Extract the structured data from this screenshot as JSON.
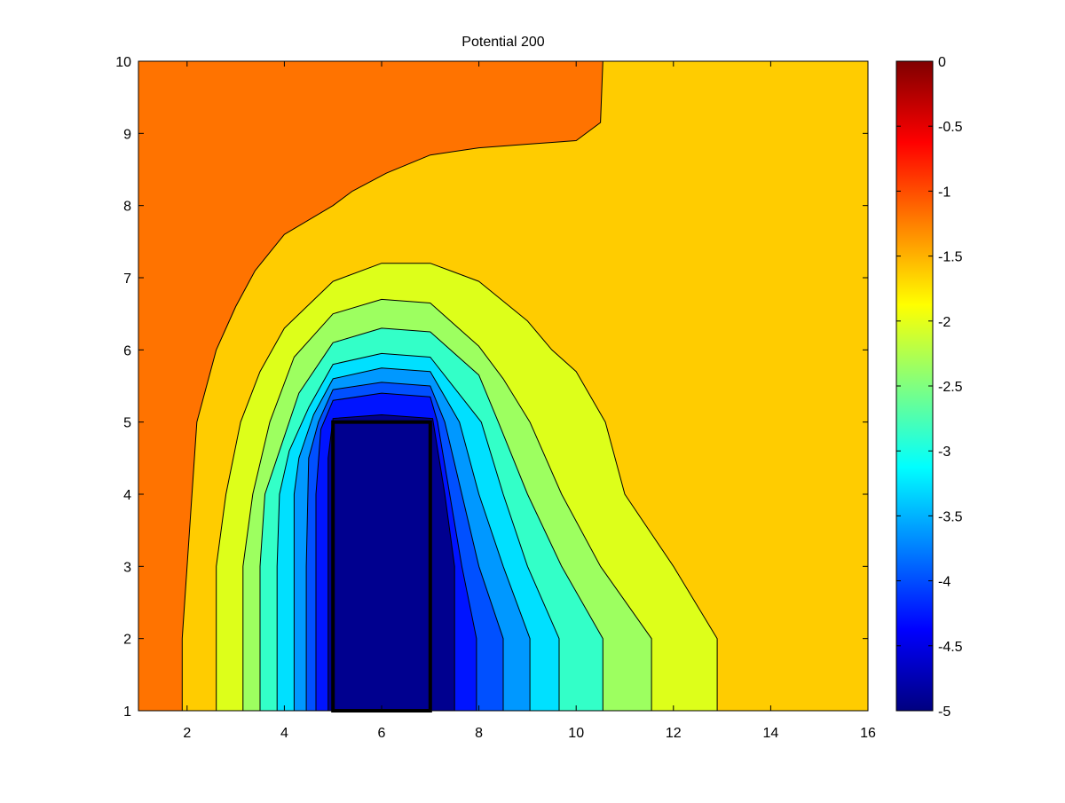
{
  "chart_data": {
    "type": "contour",
    "title": "Potential 200",
    "xlim": [
      1,
      16
    ],
    "ylim": [
      1,
      10
    ],
    "x_ticks": [
      2,
      4,
      6,
      8,
      10,
      12,
      14,
      16
    ],
    "y_ticks": [
      1,
      2,
      3,
      4,
      5,
      6,
      7,
      8,
      9,
      10
    ],
    "colorbar": {
      "limits": [
        -5,
        0
      ],
      "colormap": "jet",
      "ticks": [
        "0",
        "-0.5",
        "-1",
        "-1.5",
        "-2",
        "-2.5",
        "-3",
        "-3.5",
        "-4",
        "-4.5",
        "-5"
      ],
      "tick_values": [
        0,
        -0.5,
        -1,
        -1.5,
        -2,
        -2.5,
        -3,
        -3.5,
        -4,
        -4.5,
        -5
      ]
    },
    "background_level": {
      "value": -1.75,
      "color": "#FFCC00"
    },
    "filled_levels": [
      {
        "value": -1.25,
        "color": "#FF7300",
        "points": [
          [
            1,
            1
          ],
          [
            1.9,
            1
          ],
          [
            1.9,
            2
          ],
          [
            2.2,
            5
          ],
          [
            2.6,
            6
          ],
          [
            3.0,
            6.6
          ],
          [
            3.4,
            7.1
          ],
          [
            4.0,
            7.6
          ],
          [
            5.0,
            8.0
          ],
          [
            5.4,
            8.2
          ],
          [
            6.1,
            8.45
          ],
          [
            7.0,
            8.7
          ],
          [
            8.0,
            8.8
          ],
          [
            9.0,
            8.85
          ],
          [
            10.0,
            8.9
          ],
          [
            10.5,
            9.15
          ],
          [
            10.55,
            10
          ],
          [
            1,
            10
          ]
        ]
      },
      {
        "value": -2.05,
        "color": "#DDFF1A",
        "points": [
          [
            2.6,
            1
          ],
          [
            12.9,
            1
          ],
          [
            12.9,
            2
          ],
          [
            12.0,
            3.0
          ],
          [
            11.0,
            4.0
          ],
          [
            10.6,
            5.0
          ],
          [
            10.0,
            5.7
          ],
          [
            9.5,
            6.0
          ],
          [
            9.0,
            6.4
          ],
          [
            8.0,
            6.95
          ],
          [
            7.0,
            7.2
          ],
          [
            6.0,
            7.2
          ],
          [
            5.0,
            6.95
          ],
          [
            4.0,
            6.3
          ],
          [
            3.5,
            5.7
          ],
          [
            3.1,
            5.0
          ],
          [
            2.8,
            4.0
          ],
          [
            2.6,
            3.0
          ]
        ]
      },
      {
        "value": -2.45,
        "color": "#9DFF60",
        "points": [
          [
            3.15,
            1
          ],
          [
            11.55,
            1
          ],
          [
            11.55,
            2
          ],
          [
            10.5,
            3.0
          ],
          [
            9.7,
            4.0
          ],
          [
            9.05,
            5.0
          ],
          [
            8.5,
            5.6
          ],
          [
            8.0,
            6.05
          ],
          [
            7.0,
            6.65
          ],
          [
            6.0,
            6.7
          ],
          [
            5.0,
            6.5
          ],
          [
            4.2,
            5.9
          ],
          [
            3.7,
            5.0
          ],
          [
            3.35,
            4.0
          ],
          [
            3.15,
            3.0
          ]
        ]
      },
      {
        "value": -2.85,
        "color": "#33FFC8",
        "points": [
          [
            3.5,
            1
          ],
          [
            10.55,
            1
          ],
          [
            10.55,
            2
          ],
          [
            9.7,
            3.0
          ],
          [
            9.0,
            4.0
          ],
          [
            8.4,
            5.0
          ],
          [
            8.0,
            5.65
          ],
          [
            7.0,
            6.25
          ],
          [
            6.0,
            6.3
          ],
          [
            5.0,
            6.1
          ],
          [
            4.3,
            5.4
          ],
          [
            3.9,
            4.6
          ],
          [
            3.6,
            4.0
          ],
          [
            3.5,
            3.0
          ]
        ]
      },
      {
        "value": -3.25,
        "color": "#00E0FF",
        "points": [
          [
            3.85,
            1
          ],
          [
            9.65,
            1
          ],
          [
            9.65,
            2
          ],
          [
            9.0,
            3.0
          ],
          [
            8.5,
            4.0
          ],
          [
            8.05,
            5.0
          ],
          [
            7.0,
            5.9
          ],
          [
            6.0,
            5.95
          ],
          [
            5.0,
            5.8
          ],
          [
            4.5,
            5.2
          ],
          [
            4.1,
            4.6
          ],
          [
            3.9,
            4.0
          ],
          [
            3.85,
            3.0
          ]
        ]
      },
      {
        "value": -3.65,
        "color": "#0098FF",
        "points": [
          [
            4.2,
            1
          ],
          [
            9.05,
            1
          ],
          [
            9.05,
            2
          ],
          [
            8.5,
            3.0
          ],
          [
            8.0,
            4.0
          ],
          [
            7.6,
            5.0
          ],
          [
            7.0,
            5.7
          ],
          [
            6.0,
            5.75
          ],
          [
            5.0,
            5.6
          ],
          [
            4.6,
            5.1
          ],
          [
            4.3,
            4.5
          ],
          [
            4.2,
            4.0
          ],
          [
            4.2,
            3.0
          ]
        ]
      },
      {
        "value": -4.05,
        "color": "#0050FF",
        "points": [
          [
            4.45,
            1
          ],
          [
            8.5,
            1
          ],
          [
            8.5,
            2
          ],
          [
            8.0,
            3.0
          ],
          [
            7.65,
            4.0
          ],
          [
            7.3,
            5.0
          ],
          [
            7.0,
            5.5
          ],
          [
            6.0,
            5.55
          ],
          [
            5.0,
            5.45
          ],
          [
            4.7,
            5.0
          ],
          [
            4.5,
            4.5
          ],
          [
            4.45,
            3.0
          ]
        ]
      },
      {
        "value": -4.45,
        "color": "#0014FF",
        "points": [
          [
            4.65,
            1
          ],
          [
            7.95,
            1
          ],
          [
            7.95,
            2
          ],
          [
            7.65,
            3.0
          ],
          [
            7.4,
            4.0
          ],
          [
            7.15,
            5.0
          ],
          [
            7.0,
            5.35
          ],
          [
            6.0,
            5.4
          ],
          [
            5.0,
            5.3
          ],
          [
            4.75,
            4.9
          ],
          [
            4.65,
            4.0
          ]
        ]
      },
      {
        "value": -4.85,
        "color": "#00008F",
        "points": [
          [
            4.9,
            1
          ],
          [
            7.5,
            1
          ],
          [
            7.5,
            3.0
          ],
          [
            7.3,
            4.0
          ],
          [
            7.05,
            5.05
          ],
          [
            6.0,
            5.1
          ],
          [
            5.0,
            5.05
          ],
          [
            4.9,
            4.5
          ]
        ]
      }
    ],
    "electrode": {
      "x": [
        5,
        7
      ],
      "y": [
        1,
        5
      ]
    }
  }
}
